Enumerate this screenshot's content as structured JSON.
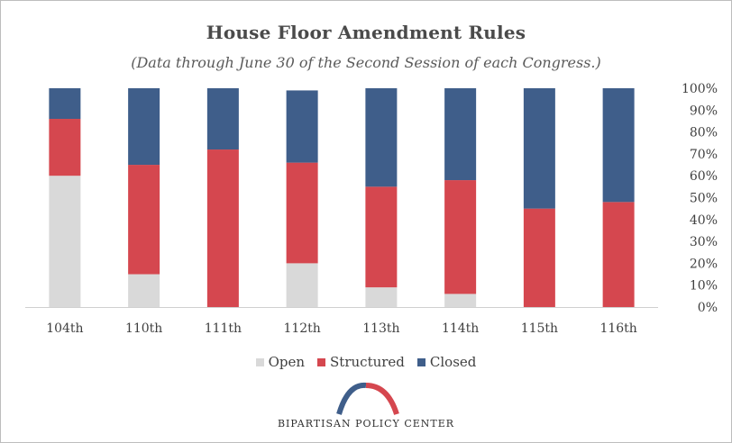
{
  "chart_data": {
    "type": "bar",
    "stacked": true,
    "title": "House Floor Amendment Rules",
    "subtitle": "(Data through June 30 of the Second Session of each Congress.)",
    "categories": [
      "104th",
      "110th",
      "111th",
      "112th",
      "113th",
      "114th",
      "115th",
      "116th"
    ],
    "series": [
      {
        "name": "Open",
        "color": "#d9d9d9",
        "values": [
          60,
          15,
          0,
          20,
          9,
          6,
          0,
          0
        ]
      },
      {
        "name": "Structured",
        "color": "#d5474f",
        "values": [
          26,
          50,
          72,
          46,
          46,
          52,
          45,
          48
        ]
      },
      {
        "name": "Closed",
        "color": "#3f5e8a",
        "values": [
          14,
          35,
          28,
          33,
          45,
          42,
          55,
          52
        ]
      }
    ],
    "ylim": [
      0,
      100
    ],
    "y_ticks": [
      "0%",
      "10%",
      "20%",
      "30%",
      "40%",
      "50%",
      "60%",
      "70%",
      "80%",
      "90%",
      "100%"
    ],
    "y_axis_side": "right",
    "grid": false,
    "legend_position": "bottom"
  },
  "branding": {
    "organization": "BIPARTISAN POLICY CENTER",
    "arc_left_color": "#3f5e8a",
    "arc_right_color": "#d5474f"
  }
}
